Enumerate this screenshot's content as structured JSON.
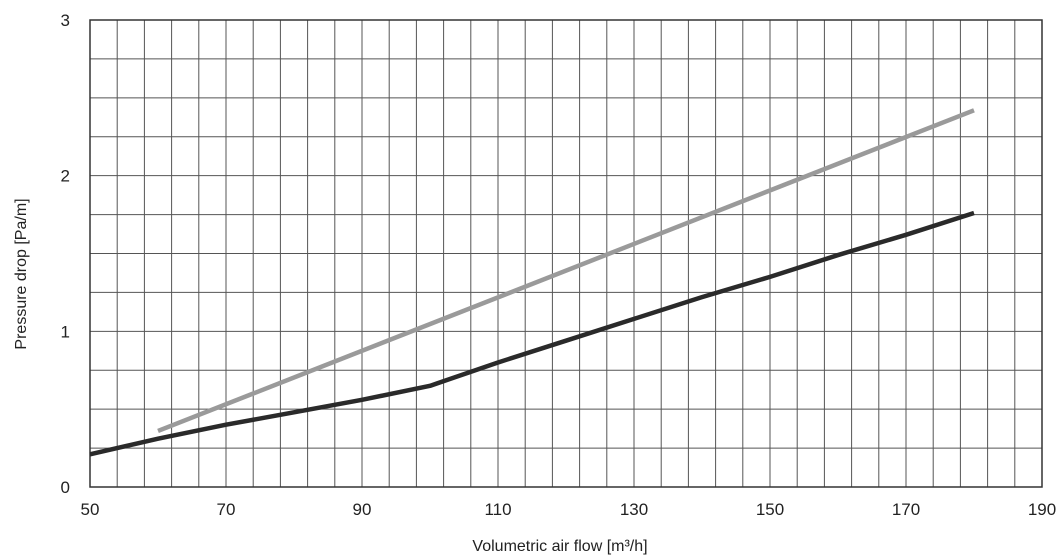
{
  "chart_data": {
    "type": "line",
    "title": "",
    "xlabel": "Volumetric air flow [m³/h]",
    "ylabel": "Pressure drop [Pa/m]",
    "xlim": [
      50,
      190
    ],
    "ylim": [
      0,
      3
    ],
    "x_ticks": [
      "50",
      "70",
      "90",
      "110",
      "130",
      "150",
      "170",
      "190"
    ],
    "y_ticks": [
      "0",
      "1",
      "2",
      "3"
    ],
    "grid": true,
    "x_minor_step": 4,
    "y_minor_step": 0.25,
    "series": [
      {
        "color": "#9a9a9a",
        "x": [
          60,
          180
        ],
        "y": [
          0.36,
          2.42
        ]
      },
      {
        "color": "#2a2a2a",
        "x": [
          50,
          60,
          70,
          80,
          90,
          100,
          110,
          120,
          130,
          140,
          150,
          160,
          170,
          180
        ],
        "y": [
          0.21,
          0.31,
          0.4,
          0.48,
          0.56,
          0.65,
          0.8,
          0.94,
          1.08,
          1.22,
          1.35,
          1.49,
          1.62,
          1.76
        ]
      }
    ]
  }
}
